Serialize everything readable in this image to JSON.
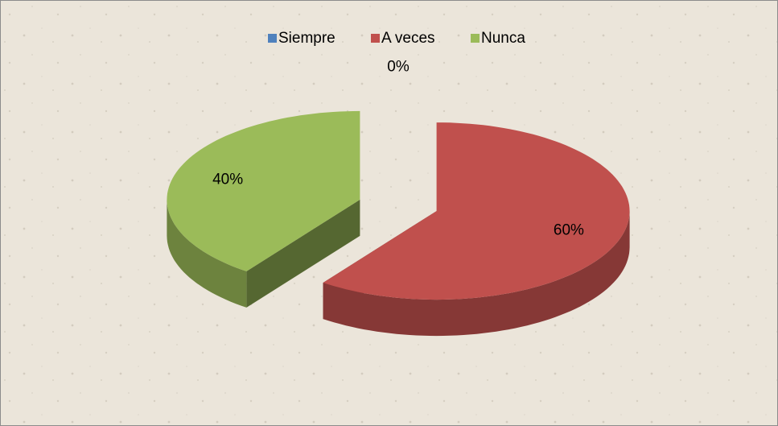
{
  "chart_data": {
    "type": "pie",
    "categories": [
      "Siempre",
      "A veces",
      "Nunca"
    ],
    "values": [
      0,
      60,
      40
    ],
    "value_labels": [
      "0%",
      "60%",
      "40%"
    ],
    "colors": [
      "#4f81bd",
      "#c0504d",
      "#9bbb59"
    ],
    "legend": "top"
  }
}
